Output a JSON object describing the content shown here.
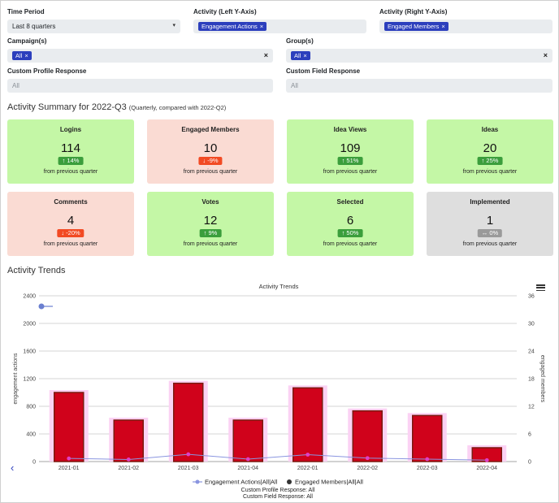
{
  "filters": {
    "time_period": {
      "label": "Time Period",
      "value": "Last 8 quarters",
      "caret": "▾"
    },
    "activity_left": {
      "label": "Activity (Left Y-Axis)",
      "tag": "Engagement Actions"
    },
    "activity_right": {
      "label": "Activity (Right Y-Axis)",
      "tag": "Engaged Members"
    },
    "campaigns": {
      "label": "Campaign(s)",
      "tag": "All"
    },
    "groups": {
      "label": "Group(s)",
      "tag": "All"
    },
    "custom_profile": {
      "label": "Custom Profile Response",
      "placeholder": "All"
    },
    "custom_field": {
      "label": "Custom Field Response",
      "placeholder": "All"
    },
    "tag_close": "×",
    "clear": "×"
  },
  "summary": {
    "title": "Activity Summary for 2022-Q3",
    "subtitle": "(Quarterly, compared with 2022-Q2)",
    "footnote": "from previous quarter",
    "cards": [
      {
        "title": "Logins",
        "value": "114",
        "change": "↑ 14%",
        "trend": "up",
        "color": "#c4f7a6"
      },
      {
        "title": "Engaged Members",
        "value": "10",
        "change": "↓ -9%",
        "trend": "down",
        "color": "#fadbd3"
      },
      {
        "title": "Idea Views",
        "value": "109",
        "change": "↑ 51%",
        "trend": "up",
        "color": "#c4f7a6"
      },
      {
        "title": "Ideas",
        "value": "20",
        "change": "↑ 25%",
        "trend": "up",
        "color": "#c4f7a6"
      },
      {
        "title": "Comments",
        "value": "4",
        "change": "↓ -20%",
        "trend": "down",
        "color": "#fadbd3"
      },
      {
        "title": "Votes",
        "value": "12",
        "change": "↑ 9%",
        "trend": "up",
        "color": "#c4f7a6"
      },
      {
        "title": "Selected",
        "value": "6",
        "change": "↑ 50%",
        "trend": "up",
        "color": "#c4f7a6"
      },
      {
        "title": "Implemented",
        "value": "1",
        "change": "↔ 0%",
        "trend": "flat",
        "color": "#dedede"
      }
    ]
  },
  "trends": {
    "title": "Activity Trends",
    "menu_icon": "hamburger-menu-icon",
    "back_icon": "chevron-left-icon"
  },
  "chart_data": {
    "type": "bar",
    "title": "Activity Trends",
    "categories": [
      "2021-01",
      "2021-02",
      "2021-03",
      "2021-04",
      "2022-01",
      "2022-02",
      "2022-03",
      "2022-04"
    ],
    "series": [
      {
        "name": "Engagement Actions|All|All",
        "type": "line",
        "axis": "left",
        "color": "#8a95e0",
        "values": [
          45,
          30,
          105,
          35,
          100,
          50,
          35,
          20
        ]
      },
      {
        "name": "Engaged Members|All|All",
        "type": "bar",
        "axis": "right",
        "color": "#d0021b",
        "values": [
          15,
          9,
          17,
          9,
          16,
          11,
          10,
          3
        ]
      }
    ],
    "ylabel_left": "engagement actions",
    "ylabel_right": "engaged members",
    "ylim_left": [
      0,
      2400
    ],
    "ylim_right": [
      0,
      36
    ],
    "yticks_left": [
      "0",
      "400",
      "800",
      "1200",
      "1600",
      "2000",
      "2400"
    ],
    "yticks_right": [
      "0",
      "6",
      "12",
      "18",
      "24",
      "30",
      "36"
    ],
    "legend_position": "bottom",
    "grid": true,
    "footer_lines": [
      "Custom Profile Response: All",
      "Custom Field Response: All"
    ]
  }
}
